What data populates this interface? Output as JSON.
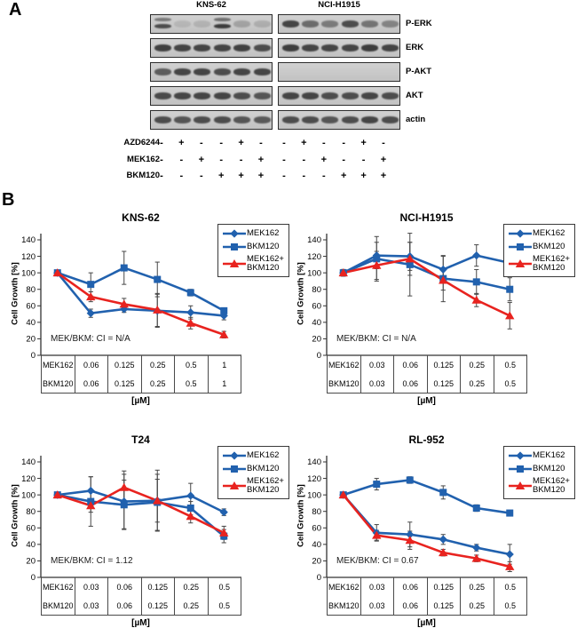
{
  "colors": {
    "blue": "#2161AE",
    "red": "#E8231F",
    "error_bar": "#474747",
    "axis": "#333333"
  },
  "panelA": {
    "label": "A",
    "row_labels": [
      "P-ERK",
      "ERK",
      "P-AKT",
      "AKT",
      "actin"
    ],
    "groups": [
      {
        "title": "KNS-62",
        "rows": [
          {
            "protein": "P-ERK",
            "intensities": [
              0.8,
              0.12,
              0.15,
              0.9,
              0.25,
              0.18
            ],
            "double": [
              1,
              0,
              0,
              1,
              0,
              0
            ]
          },
          {
            "protein": "ERK",
            "intensities": [
              0.88,
              0.85,
              0.85,
              0.85,
              0.88,
              0.8
            ]
          },
          {
            "protein": "P-AKT",
            "intensities": [
              0.7,
              0.85,
              0.85,
              0.8,
              0.85,
              0.85
            ]
          },
          {
            "protein": "AKT",
            "intensities": [
              0.82,
              0.85,
              0.85,
              0.85,
              0.8,
              0.75
            ]
          },
          {
            "protein": "actin",
            "intensities": [
              0.8,
              0.75,
              0.8,
              0.8,
              0.75,
              0.72
            ]
          }
        ]
      },
      {
        "title": "NCI-H1915",
        "rows": [
          {
            "protein": "P-ERK",
            "intensities": [
              0.85,
              0.6,
              0.5,
              0.8,
              0.55,
              0.45
            ]
          },
          {
            "protein": "ERK",
            "intensities": [
              0.9,
              0.85,
              0.85,
              0.85,
              0.9,
              0.85
            ]
          },
          {
            "protein": "P-AKT",
            "intensities": [
              0,
              0,
              0,
              0,
              0,
              0
            ]
          },
          {
            "protein": "AKT",
            "intensities": [
              0.85,
              0.85,
              0.8,
              0.8,
              0.85,
              0.8
            ]
          },
          {
            "protein": "actin",
            "intensities": [
              0.8,
              0.8,
              0.75,
              0.8,
              0.85,
              0.8
            ]
          }
        ]
      }
    ],
    "treatments": [
      {
        "drug": "AZD6244",
        "signs": [
          "-",
          "+",
          "-",
          "-",
          "+",
          "-",
          "-",
          "+",
          "-",
          "-",
          "+",
          "-"
        ]
      },
      {
        "drug": "MEK162",
        "signs": [
          "-",
          "-",
          "+",
          "-",
          "-",
          "+",
          "-",
          "-",
          "+",
          "-",
          "-",
          "+"
        ]
      },
      {
        "drug": "BKM120",
        "signs": [
          "-",
          "-",
          "-",
          "+",
          "+",
          "+",
          "-",
          "-",
          "-",
          "+",
          "+",
          "+"
        ]
      }
    ]
  },
  "panelB": {
    "label": "B"
  },
  "chart_data": [
    {
      "type": "line",
      "title": "KNS-62",
      "ylabel": "Cell Growth [%]",
      "xlabel": "[µM]",
      "ylim": [
        0,
        140
      ],
      "yticks": [
        0,
        20,
        40,
        60,
        80,
        100,
        120,
        140
      ],
      "annotation": "MEK/BKM: CI = N/A",
      "legend_position": "right",
      "grid": false,
      "series": [
        {
          "name": "MEK162",
          "color": "blue",
          "marker": "diamond",
          "values": [
            100,
            51,
            56,
            54,
            52,
            48
          ],
          "err": [
            3,
            5,
            4,
            20,
            8,
            5
          ]
        },
        {
          "name": "BKM120",
          "color": "blue",
          "marker": "square",
          "values": [
            100,
            86,
            106,
            92,
            76,
            54
          ],
          "err": [
            2,
            14,
            20,
            21,
            4,
            3
          ]
        },
        {
          "name": "MEK162+\nBKM120",
          "color": "red",
          "marker": "triangle",
          "values": [
            100,
            71,
            62,
            55,
            39,
            25
          ],
          "err": [
            3,
            6,
            7,
            20,
            7,
            4
          ]
        }
      ],
      "dose_table": [
        {
          "label": "MEK162",
          "values": [
            "0.06",
            "0.125",
            "0.25",
            "0.5",
            "1"
          ]
        },
        {
          "label": "BKM120",
          "values": [
            "0.06",
            "0.125",
            "0.25",
            "0.5",
            "1"
          ]
        }
      ]
    },
    {
      "type": "line",
      "title": "NCI-H1915",
      "ylabel": "Cell Growth [%]",
      "xlabel": "[µM]",
      "ylim": [
        0,
        140
      ],
      "yticks": [
        0,
        20,
        40,
        60,
        80,
        100,
        120,
        140
      ],
      "annotation": "MEK/BKM: CI = N/A",
      "legend_position": "right",
      "grid": false,
      "series": [
        {
          "name": "MEK162",
          "color": "blue",
          "marker": "diamond",
          "values": [
            100,
            121,
            120,
            104,
            121,
            112
          ],
          "err": [
            4,
            16,
            17,
            16,
            13,
            10
          ]
        },
        {
          "name": "BKM120",
          "color": "blue",
          "marker": "square",
          "values": [
            100,
            117,
            110,
            93,
            89,
            80
          ],
          "err": [
            4,
            27,
            38,
            28,
            15,
            14
          ]
        },
        {
          "name": "MEK162+\nBKM120",
          "color": "red",
          "marker": "triangle",
          "values": [
            100,
            109,
            117,
            91,
            67,
            48
          ],
          "err": [
            4,
            17,
            20,
            12,
            8,
            16
          ]
        }
      ],
      "dose_table": [
        {
          "label": "MEK162",
          "values": [
            "0.03",
            "0.06",
            "0.125",
            "0.25",
            "0.5"
          ]
        },
        {
          "label": "BKM120",
          "values": [
            "0.03",
            "0.06",
            "0.125",
            "0.25",
            "0.5"
          ]
        }
      ]
    },
    {
      "type": "line",
      "title": "T24",
      "ylabel": "Cell Growth [%]",
      "xlabel": "[µM]",
      "ylim": [
        0,
        140
      ],
      "yticks": [
        0,
        20,
        40,
        60,
        80,
        100,
        120,
        140
      ],
      "annotation": "MEK/BKM: CI = 1.12",
      "legend_position": "right",
      "grid": false,
      "series": [
        {
          "name": "MEK162",
          "color": "blue",
          "marker": "diamond",
          "values": [
            100,
            105,
            92,
            93,
            99,
            79
          ],
          "err": [
            3,
            17,
            33,
            37,
            15,
            4
          ]
        },
        {
          "name": "BKM120",
          "color": "blue",
          "marker": "square",
          "values": [
            100,
            92,
            88,
            91,
            84,
            50
          ],
          "err": [
            3,
            30,
            30,
            34,
            8,
            8
          ]
        },
        {
          "name": "MEK162+\nBKM120",
          "color": "red",
          "marker": "triangle",
          "values": [
            100,
            87,
            109,
            93,
            74,
            54
          ],
          "err": [
            3,
            8,
            20,
            26,
            8,
            8
          ]
        }
      ],
      "dose_table": [
        {
          "label": "MEK162",
          "values": [
            "0.03",
            "0.06",
            "0.125",
            "0.25",
            "0.5"
          ]
        },
        {
          "label": "BKM120",
          "values": [
            "0.03",
            "0.06",
            "0.125",
            "0.25",
            "0.5"
          ]
        }
      ]
    },
    {
      "type": "line",
      "title": "RL-952",
      "ylabel": "Cell Growth [%]",
      "xlabel": "[µM]",
      "ylim": [
        0,
        140
      ],
      "yticks": [
        0,
        20,
        40,
        60,
        80,
        100,
        120,
        140
      ],
      "annotation": "MEK/BKM: CI = 0.67",
      "legend_position": "right",
      "grid": false,
      "series": [
        {
          "name": "MEK162",
          "color": "blue",
          "marker": "diamond",
          "values": [
            100,
            54,
            52,
            46,
            36,
            28
          ],
          "err": [
            2,
            10,
            15,
            6,
            4,
            12
          ]
        },
        {
          "name": "BKM120",
          "color": "blue",
          "marker": "square",
          "values": [
            100,
            113,
            118,
            103,
            84,
            78
          ],
          "err": [
            2,
            7,
            4,
            8,
            4,
            3
          ]
        },
        {
          "name": "MEK162+\nBKM120",
          "color": "red",
          "marker": "triangle",
          "values": [
            100,
            51,
            45,
            30,
            23,
            13
          ],
          "err": [
            2,
            6,
            11,
            4,
            4,
            6
          ]
        }
      ],
      "dose_table": [
        {
          "label": "MEK162",
          "values": [
            "0.03",
            "0.06",
            "0.125",
            "0.25",
            "0.5"
          ]
        },
        {
          "label": "BKM120",
          "values": [
            "0.03",
            "0.06",
            "0.125",
            "0.25",
            "0.5"
          ]
        }
      ]
    }
  ]
}
